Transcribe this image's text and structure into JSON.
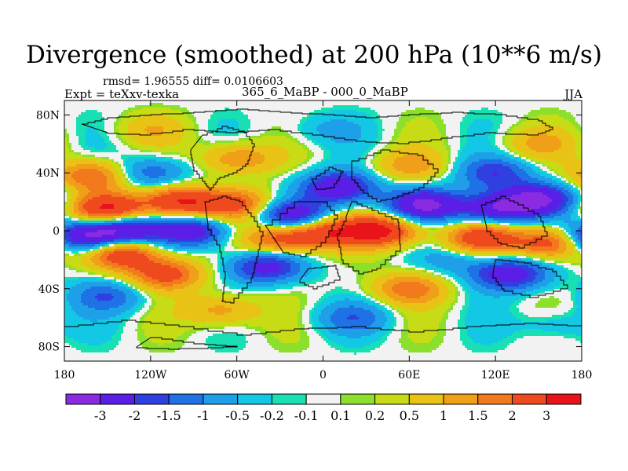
{
  "chart_data": {
    "type": "heatmap",
    "title": "Divergence (smoothed) at 200 hPa (10**6 m/s)",
    "stats": "rmsd= 1.96555 diff= 0.0106603",
    "left_label": "Expt = teXxv-texka",
    "center_label": "365_6_MaBP - 000_0_MaBP",
    "right_label": "JJA",
    "xlim": [
      -180,
      180
    ],
    "ylim": [
      -90,
      90
    ],
    "x_ticks": [
      {
        "value": -180,
        "label": "180"
      },
      {
        "value": -120,
        "label": "120W"
      },
      {
        "value": -60,
        "label": "60W"
      },
      {
        "value": 0,
        "label": "0"
      },
      {
        "value": 60,
        "label": "60E"
      },
      {
        "value": 120,
        "label": "120E"
      },
      {
        "value": 180,
        "label": "180"
      }
    ],
    "y_ticks": [
      {
        "value": 80,
        "label": "80N"
      },
      {
        "value": 40,
        "label": "40N"
      },
      {
        "value": 0,
        "label": "0"
      },
      {
        "value": -40,
        "label": "40S"
      },
      {
        "value": -80,
        "label": "80S"
      }
    ],
    "colorbar": {
      "colors": [
        "#8a2be2",
        "#5a1ee6",
        "#2f3fe0",
        "#1f72e6",
        "#1ea0e8",
        "#12c8e4",
        "#18e0b4",
        "#f2f2f2",
        "#8ce02c",
        "#c8dc16",
        "#e8c214",
        "#f0a018",
        "#f27a1c",
        "#ee4a1e",
        "#e8141a"
      ],
      "labels": [
        "-3",
        "-2",
        "-1.5",
        "-1",
        "-0.5",
        "-0.2",
        "-0.1",
        "0.1",
        "0.2",
        "0.5",
        "1",
        "1.5",
        "2",
        "3"
      ]
    },
    "field_features": [
      {
        "lon": -150,
        "lat": 15,
        "value": 3.2
      },
      {
        "lon": -100,
        "lat": 20,
        "value": 3.0
      },
      {
        "lon": -60,
        "lat": 18,
        "value": 2.2
      },
      {
        "lon": -140,
        "lat": 0,
        "value": -3.2
      },
      {
        "lon": -90,
        "lat": 0,
        "value": -2.6
      },
      {
        "lon": -170,
        "lat": -5,
        "value": -3.3
      },
      {
        "lon": -20,
        "lat": 10,
        "value": -3.0
      },
      {
        "lon": 70,
        "lat": 18,
        "value": -3.2
      },
      {
        "lon": 120,
        "lat": 15,
        "value": -2.7
      },
      {
        "lon": 150,
        "lat": 22,
        "value": -3.0
      },
      {
        "lon": 40,
        "lat": 0,
        "value": 3.3
      },
      {
        "lon": 0,
        "lat": 0,
        "value": 2.6
      },
      {
        "lon": -30,
        "lat": -5,
        "value": 2.4
      },
      {
        "lon": 110,
        "lat": -5,
        "value": 2.6
      },
      {
        "lon": 160,
        "lat": -8,
        "value": 3.0
      },
      {
        "lon": -140,
        "lat": -15,
        "value": 3.0
      },
      {
        "lon": -110,
        "lat": -30,
        "value": 2.4
      },
      {
        "lon": -40,
        "lat": -25,
        "value": -2.4
      },
      {
        "lon": 130,
        "lat": -30,
        "value": -2.6
      },
      {
        "lon": 60,
        "lat": -40,
        "value": 1.8
      },
      {
        "lon": -120,
        "lat": 40,
        "value": -1.6
      },
      {
        "lon": -160,
        "lat": 38,
        "value": 2.2
      },
      {
        "lon": -60,
        "lat": 50,
        "value": 1.6
      },
      {
        "lon": 60,
        "lat": 45,
        "value": 1.2
      },
      {
        "lon": 120,
        "lat": 40,
        "value": -1.8
      },
      {
        "lon": 10,
        "lat": 30,
        "value": -2.8
      },
      {
        "lon": -70,
        "lat": -55,
        "value": 1.4
      },
      {
        "lon": 20,
        "lat": -60,
        "value": -1.2
      },
      {
        "lon": 160,
        "lat": -65,
        "value": -0.6
      },
      {
        "lon": -150,
        "lat": -45,
        "value": -1.4
      },
      {
        "lon": 0,
        "lat": 70,
        "value": -0.6
      },
      {
        "lon": 150,
        "lat": 60,
        "value": 1.0
      },
      {
        "lon": -120,
        "lat": 70,
        "value": 0.8
      },
      {
        "lon": 90,
        "lat": -20,
        "value": -0.8
      }
    ]
  }
}
